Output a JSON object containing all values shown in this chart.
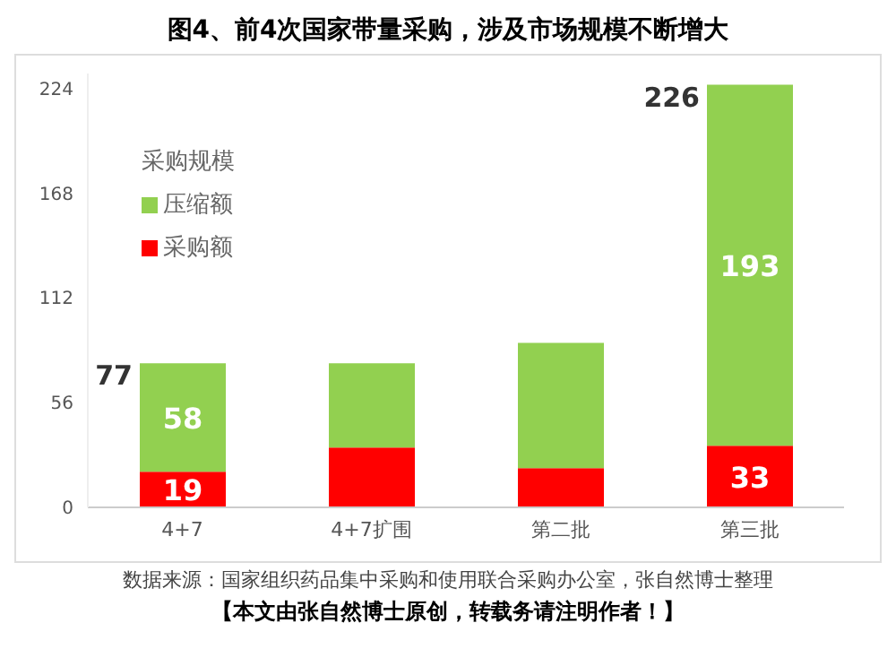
{
  "chart_data": {
    "type": "bar",
    "title": "图4、前4次国家带量采购，涉及市场规模不断增大",
    "categories": [
      "4+7",
      "4+7扩围",
      "第二批",
      "第三批"
    ],
    "stacked": true,
    "legend_title": "采购规模",
    "legend": "top left",
    "grid": false,
    "ylim": [
      0,
      232
    ],
    "yticks": [
      0,
      56,
      112,
      168,
      224
    ],
    "series": [
      {
        "name": "采购额",
        "color": "#ff0000",
        "values": [
          19,
          32,
          21,
          33
        ],
        "value_labels": [
          "19",
          null,
          null,
          "33"
        ]
      },
      {
        "name": "压缩额",
        "color": "#92d050",
        "values": [
          58,
          45,
          67,
          193
        ],
        "value_labels": [
          "58",
          null,
          null,
          "193"
        ]
      }
    ],
    "totals": [
      "77",
      null,
      null,
      "226"
    ],
    "annotations": [
      "数据来源：国家组织药品集中采购和使用联合采购办公室，张自然博士整理",
      "【本文由张自然博士原创，转载务请注明作者！】"
    ]
  }
}
